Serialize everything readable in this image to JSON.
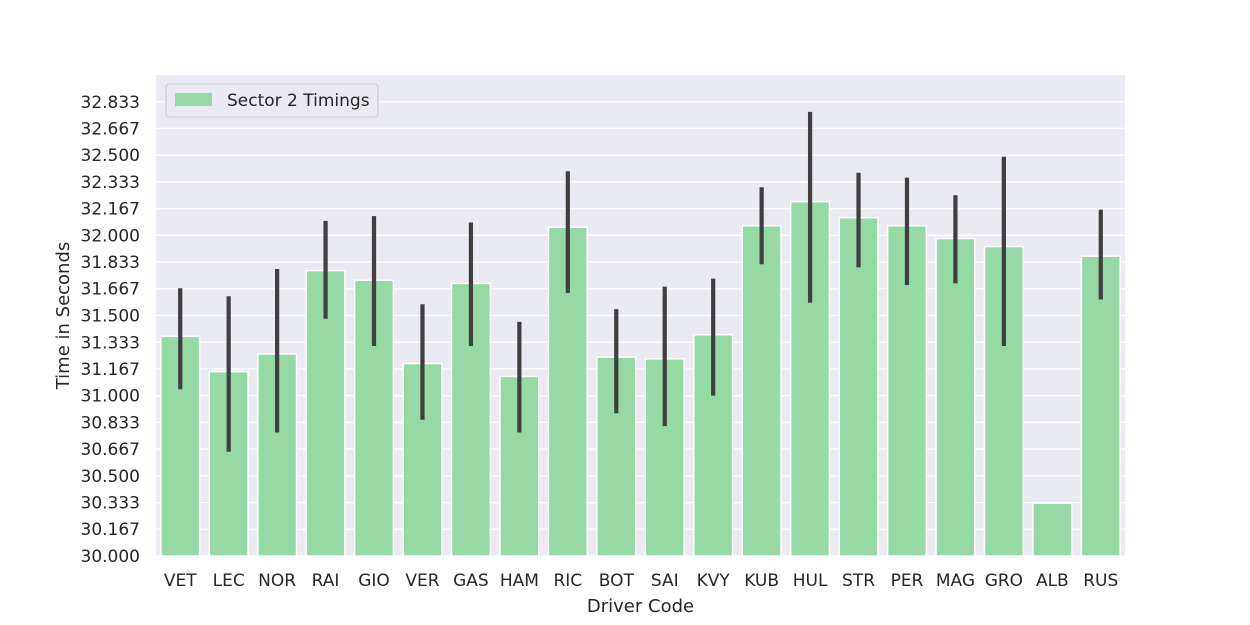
{
  "chart_data": {
    "type": "bar",
    "categories": [
      "VET",
      "LEC",
      "NOR",
      "RAI",
      "GIO",
      "VER",
      "GAS",
      "HAM",
      "RIC",
      "BOT",
      "SAI",
      "KVY",
      "KUB",
      "HUL",
      "STR",
      "PER",
      "MAG",
      "GRO",
      "ALB",
      "RUS"
    ],
    "series": [
      {
        "name": "Sector 2 Timings",
        "values": [
          31.37,
          31.15,
          31.26,
          31.78,
          31.72,
          31.2,
          31.7,
          31.12,
          32.05,
          31.24,
          31.23,
          31.38,
          32.06,
          32.21,
          32.11,
          32.06,
          31.98,
          31.93,
          30.33,
          31.87
        ],
        "err_low": [
          31.04,
          30.65,
          30.77,
          31.48,
          31.31,
          30.85,
          31.31,
          30.77,
          31.64,
          30.89,
          30.81,
          31.0,
          31.82,
          31.58,
          31.8,
          31.69,
          31.7,
          31.31,
          null,
          31.6
        ],
        "err_high": [
          31.67,
          31.62,
          31.79,
          32.09,
          32.12,
          31.57,
          32.08,
          31.46,
          32.4,
          31.54,
          31.68,
          31.73,
          32.3,
          32.77,
          32.39,
          32.36,
          32.25,
          32.49,
          null,
          32.16
        ],
        "color": "#96d9a4"
      }
    ],
    "xlabel": "Driver Code",
    "ylabel": "Time in Seconds",
    "ylim": [
      30.0,
      33.0
    ],
    "yticks": [
      "30.000",
      "30.167",
      "30.333",
      "30.500",
      "30.667",
      "30.833",
      "31.000",
      "31.167",
      "31.333",
      "31.500",
      "31.667",
      "31.833",
      "32.000",
      "32.167",
      "32.333",
      "32.500",
      "32.667",
      "32.833"
    ],
    "grid": true,
    "legend_position": "top-left",
    "colors": {
      "plot_background": "#eaeaf2",
      "grid": "#ffffff",
      "bar": "#96d9a4",
      "error_bar": "#3f3f3f"
    }
  }
}
